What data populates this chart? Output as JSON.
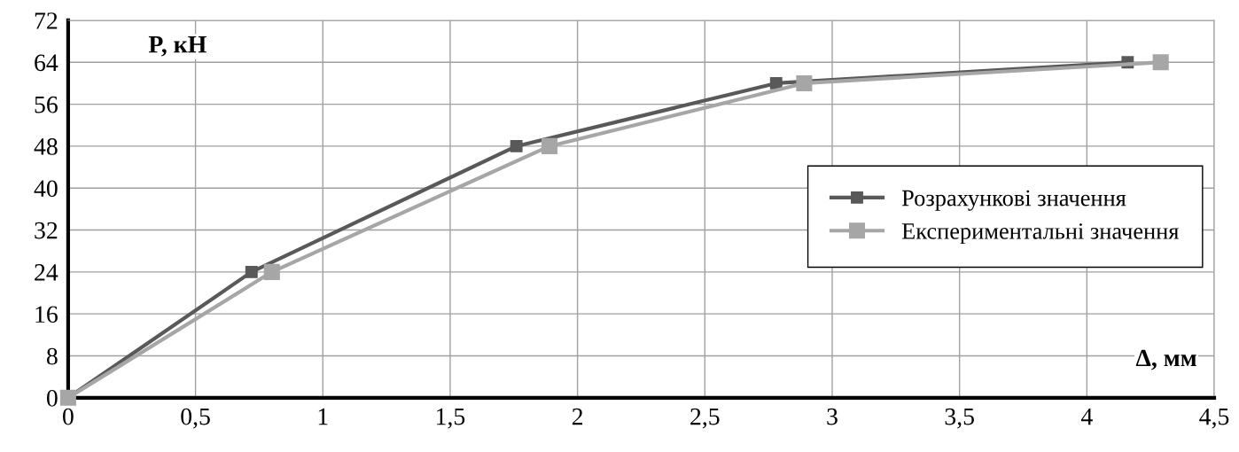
{
  "chart_data": {
    "type": "line",
    "xlabel": "Δ, мм",
    "ylabel": "P, кН",
    "xlim": [
      0,
      4.5
    ],
    "xticks": [
      0,
      {
        "value": 0.5,
        "label": "0,5"
      },
      1,
      {
        "value": 1.5,
        "label": "1,5"
      },
      2,
      {
        "value": 2.5,
        "label": "2,5"
      },
      3,
      {
        "value": 3.5,
        "label": "3,5"
      },
      4,
      {
        "value": 4.5,
        "label": "4,5"
      }
    ],
    "ylim": [
      0,
      72
    ],
    "yticks": [
      0,
      8,
      16,
      24,
      32,
      40,
      48,
      56,
      64,
      72
    ],
    "grid": true,
    "legend": "right",
    "marker": "square",
    "line_style": "solid",
    "series": [
      {
        "name": "Розрахункові значення",
        "color": "#595959",
        "x": [
          0,
          0.72,
          1.76,
          2.78,
          4.16
        ],
        "values": [
          0,
          24,
          48,
          60,
          64
        ]
      },
      {
        "name": "Експериментальні значення",
        "color": "#a6a6a6",
        "x": [
          0,
          0.8,
          1.89,
          2.89,
          4.29
        ],
        "values": [
          0,
          24,
          48,
          60,
          64
        ]
      }
    ]
  }
}
